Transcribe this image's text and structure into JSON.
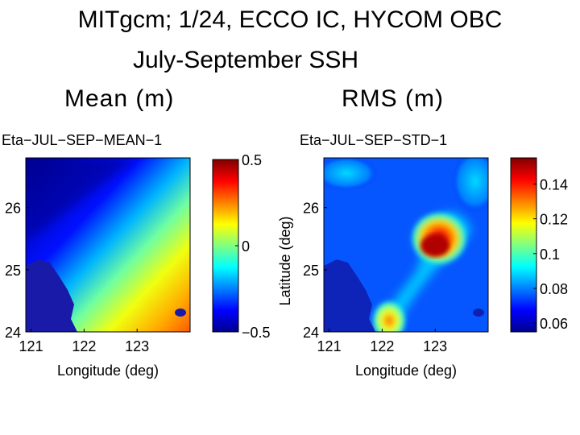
{
  "slide": {
    "title_line1": "MITgcm; 1/24, ECCO IC, HYCOM OBC",
    "title_line2": "July-September SSH",
    "left_heading": "Mean  (m)",
    "right_heading": "RMS  (m)"
  },
  "chart_data": [
    {
      "type": "heatmap",
      "title": "Eta−JUL−SEP−MEAN−1",
      "xlabel": "Longitude (deg)",
      "ylabel": "",
      "xlim": [
        120.9,
        124.0
      ],
      "ylim": [
        24.0,
        26.8
      ],
      "x_ticks": [
        121,
        122,
        123
      ],
      "x_tick_labels": [
        "121",
        "122",
        "123"
      ],
      "y_ticks": [
        24,
        25,
        26
      ],
      "y_tick_labels": [
        "24",
        "25",
        "26"
      ],
      "colormap": "jet",
      "clim": [
        -0.5,
        0.5
      ],
      "colorbar_ticks": [
        0.5,
        0,
        -0.5
      ],
      "colorbar_tick_labels": [
        "0.5",
        "0",
        "−0.5"
      ],
      "colorbar_label": "",
      "description_values": "SSH mean increases from about -0.45 m in the northwest to about 0.3 m in the southeast corner"
    },
    {
      "type": "heatmap",
      "title": "Eta−JUL−SEP−STD−1",
      "xlabel": "Longitude (deg)",
      "ylabel": "Latitude (deg)",
      "xlim": [
        120.9,
        124.0
      ],
      "ylim": [
        24.0,
        26.8
      ],
      "x_ticks": [
        121,
        122,
        123
      ],
      "x_tick_labels": [
        "121",
        "122",
        "123"
      ],
      "y_ticks": [
        24,
        25,
        26
      ],
      "y_tick_labels": [
        "24",
        "25",
        "26"
      ],
      "colormap": "jet",
      "clim": [
        0.055,
        0.155
      ],
      "colorbar_ticks": [
        0.14,
        0.12,
        0.1,
        0.08,
        0.06
      ],
      "colorbar_tick_labels": [
        "0.14",
        "0.12",
        "0.1",
        "0.08",
        "0.06"
      ],
      "colorbar_label": "",
      "description_values": "SSH RMS peaks near 0.15 m around 123E 25.5N with a secondary maximum near 122.2E 24.2N"
    }
  ],
  "colors": {
    "background": "#ffffff",
    "jet_low": "#00008f",
    "jet_high": "#800000"
  }
}
